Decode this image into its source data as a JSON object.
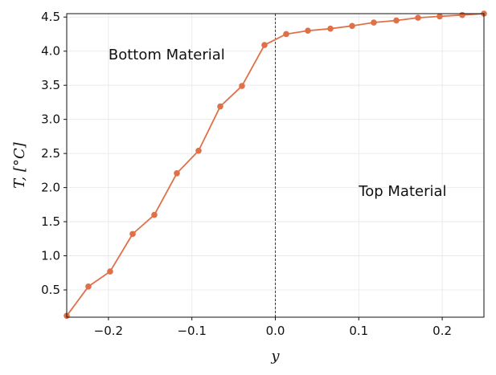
{
  "chart_data": {
    "type": "line",
    "title": "",
    "xlabel": "y",
    "ylabel": "T, [°C]",
    "xlim": [
      -0.25,
      0.25
    ],
    "ylim": [
      0.1,
      4.55
    ],
    "xticks": [
      -0.2,
      -0.1,
      0.0,
      0.1,
      0.2
    ],
    "xtick_labels": [
      "−0.2",
      "−0.1",
      "0.0",
      "0.1",
      "0.2"
    ],
    "yticks": [
      0.5,
      1.0,
      1.5,
      2.0,
      2.5,
      3.0,
      3.5,
      4.0,
      4.5
    ],
    "ytick_labels": [
      "0.5",
      "1.0",
      "1.5",
      "2.0",
      "2.5",
      "3.0",
      "3.5",
      "4.0",
      "4.5"
    ],
    "grid": true,
    "vline_x": 0.0,
    "series": [
      {
        "color": "#e07048",
        "x": [
          -0.25,
          -0.224,
          -0.198,
          -0.171,
          -0.145,
          -0.118,
          -0.092,
          -0.066,
          -0.04,
          -0.013,
          0.013,
          0.039,
          0.066,
          0.092,
          0.118,
          0.145,
          0.171,
          0.197,
          0.224,
          0.25
        ],
        "y": [
          0.12,
          0.55,
          0.77,
          1.32,
          1.6,
          2.21,
          2.54,
          3.19,
          3.49,
          4.09,
          4.25,
          4.3,
          4.33,
          4.37,
          4.42,
          4.45,
          4.49,
          4.51,
          4.53,
          4.55
        ]
      }
    ],
    "annotations": [
      {
        "text": "Bottom Material",
        "x": -0.2,
        "y": 3.95
      },
      {
        "text": "Top Material",
        "x": 0.1,
        "y": 1.95
      }
    ]
  }
}
